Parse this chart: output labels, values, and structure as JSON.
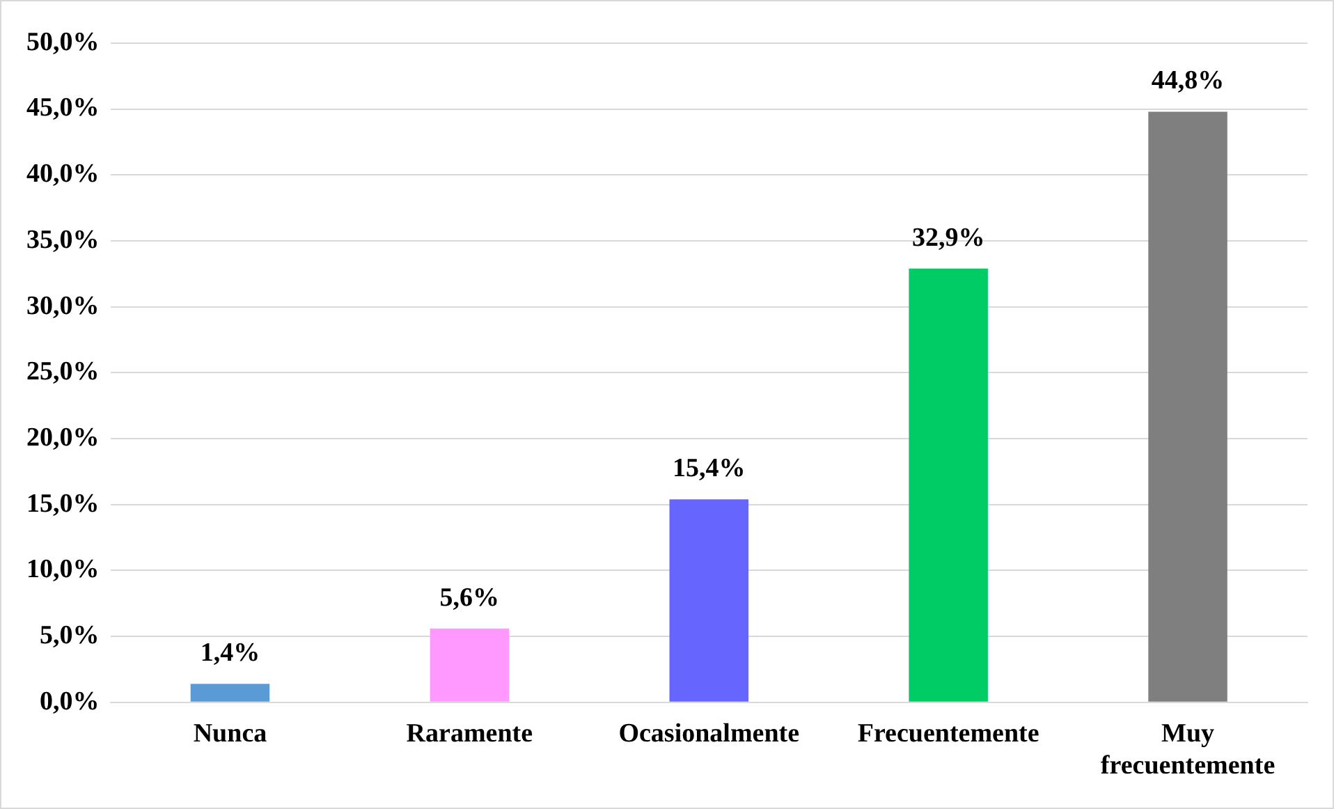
{
  "chart_data": {
    "type": "bar",
    "categories": [
      "Nunca",
      "Raramente",
      "Ocasionalmente",
      "Frecuentemente",
      "Muy frecuentemente"
    ],
    "values": [
      1.4,
      5.6,
      15.4,
      32.9,
      44.8
    ],
    "colors": [
      "#5b9bd5",
      "#ff99ff",
      "#6666ff",
      "#00cc66",
      "#7f7f7f"
    ],
    "value_labels": [
      "1,4%",
      "5,6%",
      "15,4%",
      "32,9%",
      "44,8%"
    ],
    "ylim": [
      0,
      50
    ],
    "yticks": [
      {
        "value": 0,
        "label": "0,0%"
      },
      {
        "value": 5,
        "label": "5,0%"
      },
      {
        "value": 10,
        "label": "10,0%"
      },
      {
        "value": 15,
        "label": "15,0%"
      },
      {
        "value": 20,
        "label": "20,0%"
      },
      {
        "value": 25,
        "label": "25,0%"
      },
      {
        "value": 30,
        "label": "30,0%"
      },
      {
        "value": 35,
        "label": "35,0%"
      },
      {
        "value": 40,
        "label": "40,0%"
      },
      {
        "value": 45,
        "label": "45,0%"
      },
      {
        "value": 50,
        "label": "50,0%"
      }
    ],
    "grid": "y",
    "legend": false
  }
}
